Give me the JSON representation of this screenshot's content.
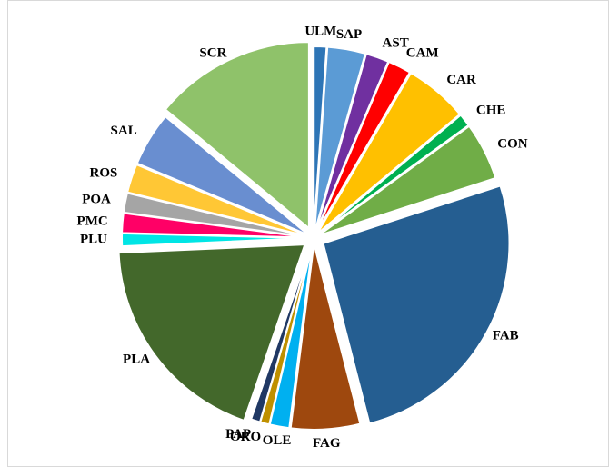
{
  "chart_data": {
    "type": "pie",
    "categories": [
      "ULM",
      "SAP",
      "AST",
      "CAM",
      "CAR",
      "CHE",
      "CON",
      "FAB",
      "FAG",
      "OLE",
      "ORO",
      "PAP",
      "PLA",
      "PLU",
      "PMC",
      "POA",
      "ROS",
      "SAL",
      "SCR"
    ],
    "values": [
      1.1,
      3.3,
      2,
      2,
      5.5,
      1.1,
      5,
      26,
      6,
      1.7,
      0.8,
      0.8,
      19,
      1.1,
      1.7,
      1.7,
      2.5,
      4.7,
      14
    ],
    "colors": [
      "#2e75b6",
      "#5b9bd5",
      "#7030a0",
      "#ff0000",
      "#ffc000",
      "#00b050",
      "#70ad47",
      "#255e91",
      "#9e480e",
      "#00b0f0",
      "#bf9000",
      "#203864",
      "#43682b",
      "#00e5e5",
      "#ff0066",
      "#a5a5a5",
      "#ffc735",
      "#698ed0",
      "#8fc26a"
    ]
  }
}
